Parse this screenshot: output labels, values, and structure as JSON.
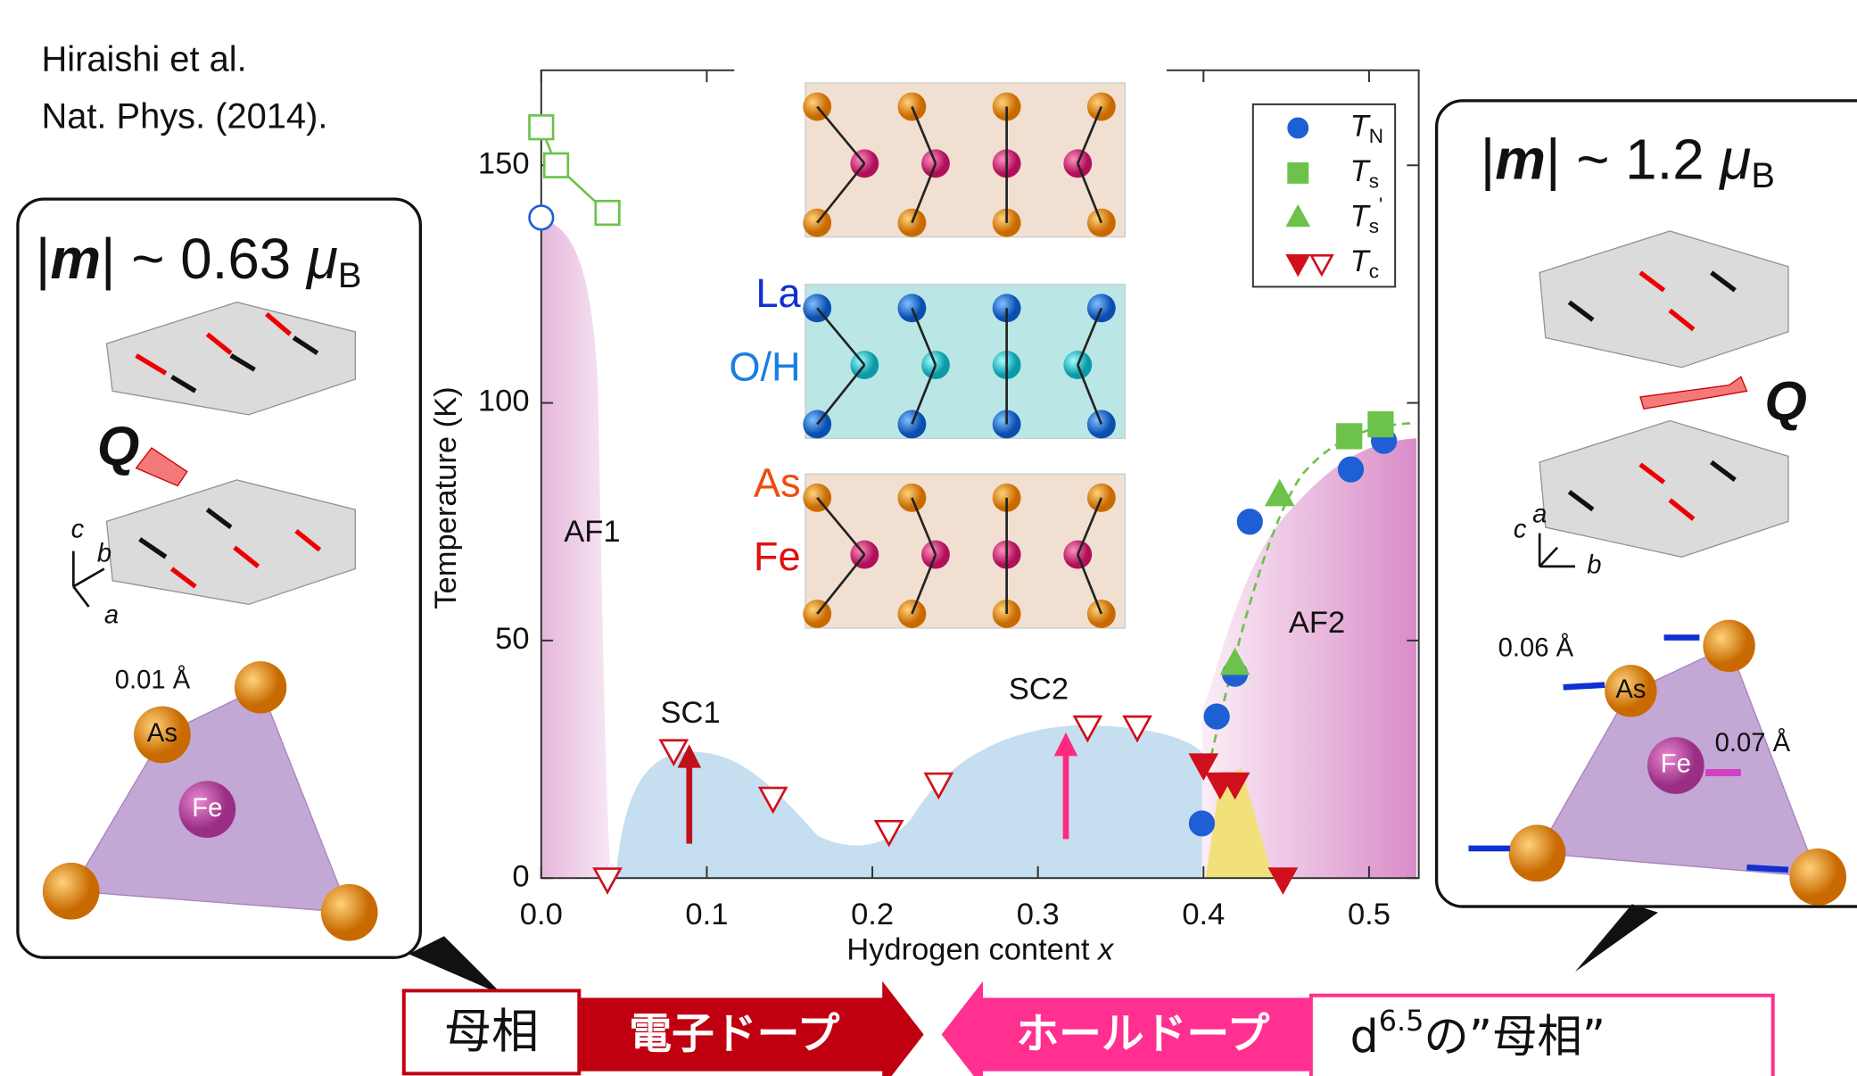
{
  "citation": [
    "Hiraishi et al.",
    "Nat. Phys. (2014)."
  ],
  "chart_data": {
    "type": "scatter",
    "xlabel": "Hydrogen content",
    "xlabel_var": "x",
    "ylabel": "Temperature (K)",
    "xlim": [
      0,
      0.53
    ],
    "ylim": [
      0,
      170
    ],
    "xticks": [
      {
        "value": 0,
        "label": "0.0"
      },
      0.1,
      0.2,
      0.3,
      0.4,
      0.5
    ],
    "yticks": [
      0,
      50,
      100,
      150
    ],
    "series": [
      {
        "name": "T",
        "name_sub": "N",
        "marker": "circle",
        "filled": true,
        "color": "#1f5fd6",
        "x": [
          0.399,
          0.408,
          0.419,
          0.428,
          0.489,
          0.509
        ],
        "y": [
          11.5,
          34,
          43,
          75,
          86,
          92
        ]
      },
      {
        "marker": "circle",
        "filled": false,
        "color": "#1f5fd6",
        "x": [
          0
        ],
        "y": [
          139
        ]
      },
      {
        "name": "T",
        "name_sub": "s",
        "marker": "square",
        "filled": true,
        "color": "#6cc24a",
        "x": [
          0.488,
          0.507
        ],
        "y": [
          93,
          95.5
        ]
      },
      {
        "marker": "square",
        "filled": false,
        "color": "#6cc24a",
        "x": [
          0,
          0.009,
          0.04
        ],
        "y": [
          158,
          150,
          140
        ]
      },
      {
        "name": "T",
        "name_sub": "s",
        "name_sup": "'",
        "marker": "triangle",
        "filled": true,
        "color": "#6cc24a",
        "x": [
          0.419,
          0.446
        ],
        "y": [
          45,
          80.5
        ]
      },
      {
        "name": "T",
        "name_sub": "c",
        "marker": "triangle-down",
        "filled": true,
        "color": "#d0101c",
        "x": [
          0.4,
          0.41,
          0.419,
          0.448
        ],
        "y": [
          24,
          20,
          20,
          0
        ]
      },
      {
        "marker": "triangle-down",
        "filled": false,
        "color": "#d0101c",
        "x": [
          0.04,
          0.08,
          0.14,
          0.21,
          0.24,
          0.33,
          0.36
        ],
        "y": [
          0,
          27,
          17,
          10,
          20,
          32,
          32
        ]
      }
    ],
    "regions": [
      "AF1",
      "SC1",
      "SC2",
      "AF2"
    ],
    "structure_labels": [
      "La",
      "O/H",
      "As",
      "Fe"
    ]
  },
  "left_panel": {
    "moment": [
      "|",
      "m",
      "| ~ 0.63 ",
      "μ",
      "B"
    ],
    "q": "Q",
    "axes": [
      "c",
      "b",
      "a"
    ],
    "shift": "0.01 Å",
    "atoms": [
      "As",
      "Fe"
    ]
  },
  "right_panel": {
    "moment": [
      "|",
      "m",
      "| ~ 1.2 ",
      "μ",
      "B"
    ],
    "q": "Q",
    "axes": [
      "c",
      "a",
      "b"
    ],
    "shifts": [
      "0.06 Å",
      "0.07 Å"
    ],
    "atoms": [
      "As",
      "Fe"
    ]
  },
  "bottom": {
    "parent": "母相",
    "electron": "電子ドープ",
    "hole": "ホールドープ",
    "d65": [
      "d",
      "6.5",
      "の”母相”"
    ]
  }
}
